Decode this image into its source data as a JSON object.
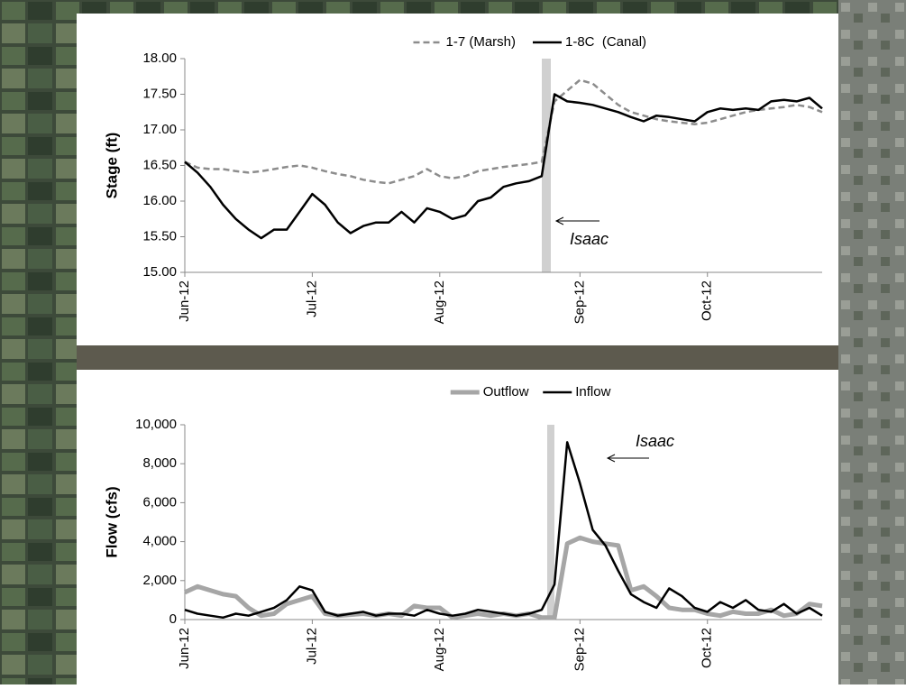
{
  "chart_data": [
    {
      "type": "line",
      "ylabel": "Stage (ft)",
      "annotation": "Isaac",
      "legend": "top",
      "categories": [
        "Jun-12",
        null,
        null,
        null,
        null,
        null,
        null,
        null,
        null,
        null,
        "Jul-12",
        null,
        null,
        null,
        null,
        null,
        null,
        null,
        null,
        null,
        "Aug-12",
        null,
        null,
        null,
        null,
        null,
        null,
        null,
        null,
        null,
        null,
        "Sep-12",
        null,
        null,
        null,
        null,
        null,
        null,
        null,
        null,
        null,
        "Oct-12",
        null,
        null,
        null,
        null,
        null,
        null,
        null,
        null,
        null
      ],
      "ylim": [
        15,
        18
      ],
      "yticks": [
        {
          "value": 15,
          "label": "15.00"
        },
        {
          "value": 15.5,
          "label": "15.50"
        },
        {
          "value": 16,
          "label": "16.00"
        },
        {
          "value": 16.5,
          "label": "16.50"
        },
        {
          "value": 17,
          "label": "17.00"
        },
        {
          "value": 17.5,
          "label": "17.50"
        },
        {
          "value": 18,
          "label": "18.00"
        }
      ],
      "series": [
        {
          "name": "1-7 (Marsh)",
          "color": "#8c8c8c",
          "line_style": "dashed",
          "values": [
            16.55,
            16.47,
            16.45,
            16.45,
            16.42,
            16.4,
            16.42,
            16.45,
            16.48,
            16.5,
            16.47,
            16.42,
            16.38,
            16.35,
            16.3,
            16.27,
            16.25,
            16.3,
            16.35,
            16.45,
            16.35,
            16.32,
            16.35,
            16.42,
            16.45,
            16.48,
            16.5,
            16.52,
            16.55,
            17.4,
            17.55,
            17.7,
            17.65,
            17.5,
            17.35,
            17.25,
            17.2,
            17.15,
            17.12,
            17.1,
            17.08,
            17.1,
            17.15,
            17.2,
            17.25,
            17.28,
            17.3,
            17.32,
            17.35,
            17.32,
            17.25
          ]
        },
        {
          "name": "1-8C  (Canal)",
          "color": "#000000",
          "line_style": "solid",
          "values": [
            16.55,
            16.4,
            16.2,
            15.95,
            15.75,
            15.6,
            15.48,
            15.6,
            15.6,
            15.85,
            16.1,
            15.95,
            15.7,
            15.55,
            15.65,
            15.7,
            15.7,
            15.85,
            15.7,
            15.9,
            15.85,
            15.75,
            15.8,
            16.0,
            16.05,
            16.2,
            16.25,
            16.28,
            16.35,
            17.5,
            17.4,
            17.38,
            17.35,
            17.3,
            17.25,
            17.18,
            17.12,
            17.2,
            17.18,
            17.15,
            17.12,
            17.25,
            17.3,
            17.28,
            17.3,
            17.28,
            17.4,
            17.42,
            17.4,
            17.45,
            17.3
          ]
        }
      ]
    },
    {
      "type": "line",
      "ylabel": "Flow (cfs)",
      "annotation": "Isaac",
      "legend": "top",
      "categories": [
        "Jun-12",
        null,
        null,
        null,
        null,
        null,
        null,
        null,
        null,
        null,
        "Jul-12",
        null,
        null,
        null,
        null,
        null,
        null,
        null,
        null,
        null,
        "Aug-12",
        null,
        null,
        null,
        null,
        null,
        null,
        null,
        null,
        null,
        null,
        "Sep-12",
        null,
        null,
        null,
        null,
        null,
        null,
        null,
        null,
        null,
        "Oct-12",
        null,
        null,
        null,
        null,
        null,
        null,
        null,
        null,
        null
      ],
      "ylim": [
        0,
        10000
      ],
      "yticks": [
        0,
        {
          "value": 2000,
          "label": "2,000"
        },
        {
          "value": 4000,
          "label": "4,000"
        },
        {
          "value": 6000,
          "label": "6,000"
        },
        {
          "value": 8000,
          "label": "8,000"
        },
        {
          "value": 10000,
          "label": "10,000"
        }
      ],
      "series": [
        {
          "name": "Outflow",
          "color": "#a6a6a6",
          "line_style": "thick",
          "values": [
            1400,
            1700,
            1500,
            1300,
            1200,
            600,
            200,
            300,
            800,
            1000,
            1200,
            300,
            200,
            250,
            300,
            200,
            300,
            200,
            700,
            600,
            600,
            100,
            200,
            300,
            200,
            300,
            200,
            300,
            100,
            100,
            3900,
            4200,
            4000,
            3900,
            3800,
            1500,
            1700,
            1200,
            600,
            500,
            500,
            300,
            200,
            400,
            300,
            300,
            500,
            200,
            300,
            800,
            700
          ]
        },
        {
          "name": "Inflow",
          "color": "#000000",
          "line_style": "solid",
          "values": [
            500,
            300,
            200,
            100,
            300,
            200,
            400,
            600,
            1000,
            1700,
            1500,
            400,
            200,
            300,
            400,
            200,
            300,
            300,
            200,
            500,
            300,
            200,
            300,
            500,
            400,
            300,
            200,
            300,
            500,
            1800,
            9100,
            7000,
            4600,
            3800,
            2500,
            1300,
            900,
            600,
            1600,
            1200,
            600,
            400,
            900,
            600,
            1000,
            500,
            400,
            800,
            300,
            600,
            200
          ]
        }
      ]
    }
  ]
}
